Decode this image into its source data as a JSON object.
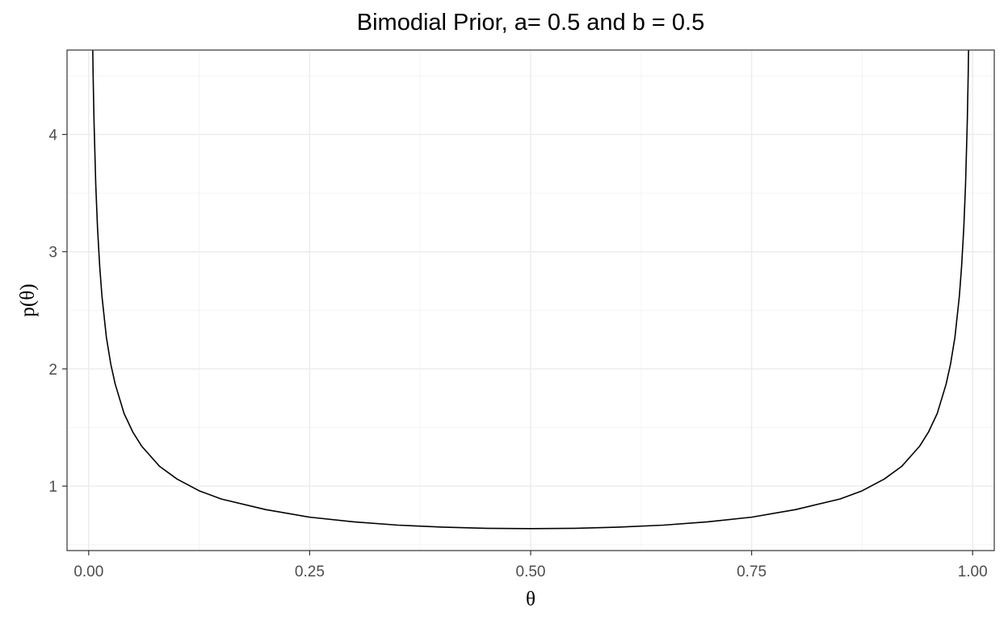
{
  "chart_data": {
    "type": "line",
    "title": "Bimodial Prior, a= 0.5 and b = 0.5",
    "xlabel": "θ",
    "ylabel": "p(θ)",
    "xlim": [
      -0.0245,
      1.0245
    ],
    "ylim": [
      0.45,
      4.72
    ],
    "x_ticks": [
      0.0,
      0.25,
      0.5,
      0.75,
      1.0
    ],
    "x_tick_labels": [
      "0.00",
      "0.25",
      "0.50",
      "0.75",
      "1.00"
    ],
    "y_ticks": [
      1,
      2,
      3,
      4
    ],
    "y_tick_labels": [
      "1",
      "2",
      "3",
      "4"
    ],
    "grid": true,
    "series": [
      {
        "color": "#000000",
        "x": [
          0.004,
          0.005,
          0.006,
          0.008,
          0.01,
          0.0125,
          0.015,
          0.02,
          0.025,
          0.03,
          0.04,
          0.05,
          0.06,
          0.08,
          0.1,
          0.125,
          0.15,
          0.2,
          0.25,
          0.3,
          0.35,
          0.4,
          0.45,
          0.5,
          0.55,
          0.6,
          0.65,
          0.7,
          0.75,
          0.8,
          0.85,
          0.875,
          0.9,
          0.92,
          0.94,
          0.95,
          0.96,
          0.97,
          0.975,
          0.98,
          0.985,
          0.9875,
          0.99,
          0.992,
          0.994,
          0.995,
          0.996
        ],
        "y": [
          5.04,
          4.51,
          4.12,
          3.57,
          3.2,
          2.87,
          2.62,
          2.27,
          2.04,
          1.87,
          1.62,
          1.46,
          1.34,
          1.17,
          1.06,
          0.96,
          0.89,
          0.8,
          0.735,
          0.695,
          0.667,
          0.65,
          0.64,
          0.637,
          0.64,
          0.65,
          0.667,
          0.695,
          0.735,
          0.8,
          0.89,
          0.96,
          1.06,
          1.17,
          1.34,
          1.46,
          1.62,
          1.87,
          2.04,
          2.27,
          2.62,
          2.87,
          3.2,
          3.57,
          4.12,
          4.51,
          5.04
        ]
      }
    ]
  }
}
